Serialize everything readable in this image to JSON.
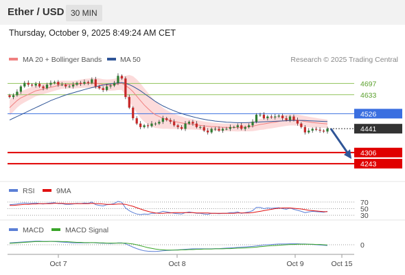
{
  "header": {
    "pair": "Ether / USD",
    "timeframe": "30 MIN",
    "datetime": "Thursday, October 9, 2025 8:49:24 AM CET"
  },
  "legend": {
    "bb": "MA 20 + Bollinger Bands",
    "bb_color": "#f08080",
    "ma50": "MA 50",
    "ma50_color": "#2f5597",
    "rsi": "RSI",
    "rsi_color": "#5b7fd6",
    "rsi_ma": "9MA",
    "rsi_ma_color": "#e01010",
    "macd": "MACD",
    "macd_color": "#5b7fd6",
    "macd_signal": "MACD Signal",
    "macd_signal_color": "#3aa52a"
  },
  "copyright": "Research © 2025 Trading Central",
  "chart_data": {
    "type": "candlestick",
    "y_range": [
      4150,
      4780
    ],
    "x_ticks": [
      "Oct 7",
      "Oct 8",
      "Oct 9",
      "Oct 15"
    ],
    "levels": [
      {
        "value": 4697,
        "label": "4697",
        "kind": "resistance",
        "color": "#8fc25a"
      },
      {
        "value": 4633,
        "label": "4633",
        "kind": "resistance",
        "color": "#8fc25a"
      },
      {
        "value": 4526,
        "label": "4526",
        "kind": "pivot",
        "color": "#3a6fe0"
      },
      {
        "value": 4441,
        "label": "4441",
        "kind": "last",
        "color": "#333333"
      },
      {
        "value": 4306,
        "label": "4306",
        "kind": "support",
        "color": "#e00000"
      },
      {
        "value": 4243,
        "label": "4243",
        "kind": "support",
        "color": "#e00000"
      }
    ],
    "forecast_arrow": {
      "from": 4441,
      "to": 4270,
      "color": "#2f5597"
    },
    "close_path": [
      4620,
      4630,
      4650,
      4680,
      4700,
      4690,
      4685,
      4695,
      4680,
      4670,
      4690,
      4700,
      4705,
      4690,
      4690,
      4680,
      4680,
      4690,
      4700,
      4695,
      4705,
      4700,
      4720,
      4680,
      4670,
      4660,
      4680,
      4685,
      4700,
      4740,
      4725,
      4620,
      4560,
      4500,
      4470,
      4450,
      4460,
      4455,
      4470,
      4470,
      4480,
      4500,
      4490,
      4480,
      4460,
      4450,
      4440,
      4470,
      4480,
      4470,
      4450,
      4450,
      4430,
      4420,
      4440,
      4440,
      4430,
      4440,
      4440,
      4450,
      4450,
      4460,
      4440,
      4450,
      4460,
      4480,
      4520,
      4520,
      4500,
      4510,
      4505,
      4510,
      4515,
      4500,
      4490,
      4510,
      4490,
      4470,
      4450,
      4420,
      4430,
      4440,
      4435,
      4430,
      4425,
      4441
    ],
    "ma20": [
      4560,
      4580,
      4600,
      4615,
      4625,
      4635,
      4645,
      4655,
      4660,
      4665,
      4670,
      4675,
      4680,
      4685,
      4690,
      4690,
      4690,
      4690,
      4692,
      4695,
      4697,
      4698,
      4700,
      4698,
      4695,
      4690,
      4688,
      4688,
      4690,
      4695,
      4698,
      4685,
      4670,
      4650,
      4625,
      4600,
      4575,
      4555,
      4535,
      4520,
      4510,
      4500,
      4493,
      4487,
      4482,
      4478,
      4474,
      4470,
      4468,
      4465,
      4462,
      4460,
      4457,
      4455,
      4453,
      4452,
      4450,
      4449,
      4448,
      4448,
      4448,
      4448,
      4449,
      4450,
      4452,
      4455,
      4460,
      4465,
      4468,
      4472,
      4475,
      4478,
      4482,
      4485,
      4488,
      4490,
      4490,
      4489,
      4486,
      4482,
      4479,
      4476,
      4474,
      4472,
      4470,
      4468
    ],
    "bb_width": [
      90,
      85,
      80,
      75,
      70,
      68,
      65,
      62,
      60,
      58,
      55,
      52,
      50,
      48,
      46,
      45,
      45,
      45,
      46,
      48,
      50,
      52,
      55,
      58,
      60,
      62,
      63,
      64,
      66,
      70,
      75,
      110,
      150,
      175,
      190,
      195,
      190,
      180,
      165,
      150,
      135,
      120,
      105,
      95,
      85,
      78,
      72,
      66,
      62,
      58,
      55,
      52,
      50,
      48,
      46,
      45,
      44,
      43,
      43,
      43,
      44,
      45,
      46,
      48,
      52,
      56,
      60,
      62,
      64,
      64,
      64,
      64,
      64,
      63,
      62,
      62,
      62,
      62,
      62,
      62,
      60,
      58,
      55,
      52,
      50,
      48
    ],
    "ma50": [
      4490,
      4500,
      4510,
      4520,
      4530,
      4540,
      4550,
      4560,
      4570,
      4580,
      4590,
      4600,
      4608,
      4616,
      4624,
      4632,
      4638,
      4644,
      4650,
      4656,
      4662,
      4668,
      4673,
      4678,
      4683,
      4688,
      4692,
      4695,
      4698,
      4700,
      4702,
      4698,
      4690,
      4680,
      4668,
      4655,
      4640,
      4625,
      4610,
      4595,
      4582,
      4570,
      4560,
      4550,
      4542,
      4534,
      4527,
      4520,
      4514,
      4508,
      4503,
      4498,
      4494,
      4490,
      4487,
      4484,
      4482,
      4480,
      4478,
      4477,
      4476,
      4475,
      4475,
      4475,
      4476,
      4477,
      4478,
      4479,
      4480,
      4481,
      4482,
      4483,
      4484,
      4485,
      4486,
      4487,
      4488,
      4488,
      4488,
      4487,
      4486,
      4485,
      4484,
      4483,
      4482,
      4481
    ],
    "rsi": {
      "levels": [
        70,
        50,
        30
      ],
      "range": [
        20,
        80
      ],
      "values": [
        62,
        63,
        64,
        66,
        67,
        66,
        66,
        67,
        65,
        64,
        66,
        67,
        68,
        65,
        65,
        63,
        63,
        64,
        66,
        65,
        67,
        66,
        70,
        62,
        60,
        58,
        62,
        63,
        66,
        72,
        69,
        52,
        44,
        38,
        34,
        32,
        34,
        33,
        36,
        36,
        38,
        42,
        40,
        38,
        36,
        35,
        34,
        38,
        40,
        38,
        36,
        36,
        34,
        33,
        36,
        36,
        35,
        36,
        36,
        38,
        38,
        40,
        36,
        38,
        40,
        44,
        54,
        54,
        50,
        52,
        51,
        52,
        53,
        50,
        48,
        52,
        48,
        45,
        42,
        38,
        40,
        42,
        41,
        40,
        39,
        42
      ],
      "ma": [
        60,
        60,
        61,
        62,
        63,
        63,
        64,
        64,
        65,
        65,
        65,
        65,
        66,
        66,
        66,
        65,
        65,
        65,
        65,
        65,
        65,
        65,
        66,
        65,
        65,
        64,
        63,
        63,
        63,
        64,
        64,
        63,
        60,
        57,
        53,
        49,
        45,
        42,
        39,
        37,
        36,
        36,
        37,
        37,
        38,
        38,
        38,
        38,
        38,
        38,
        37,
        37,
        37,
        37,
        36,
        36,
        36,
        36,
        36,
        36,
        36,
        37,
        37,
        37,
        37,
        38,
        40,
        42,
        44,
        46,
        48,
        50,
        51,
        52,
        52,
        52,
        51,
        50,
        49,
        47,
        45,
        44,
        43,
        42,
        41,
        41
      ]
    },
    "macd": {
      "zero": "0",
      "range": [
        -40,
        40
      ],
      "values": [
        8,
        9,
        10,
        11,
        12,
        13,
        14,
        15,
        15,
        14,
        14,
        14,
        13,
        12,
        11,
        10,
        9,
        8,
        8,
        8,
        8,
        8,
        9,
        8,
        7,
        6,
        6,
        5,
        6,
        8,
        8,
        4,
        -3,
        -10,
        -16,
        -21,
        -25,
        -27,
        -28,
        -28,
        -27,
        -25,
        -24,
        -23,
        -22,
        -21,
        -20,
        -19,
        -18,
        -17,
        -17,
        -17,
        -17,
        -17,
        -17,
        -16,
        -16,
        -15,
        -14,
        -13,
        -12,
        -11,
        -10,
        -9,
        -8,
        -7,
        -5,
        -3,
        -1,
        0,
        1,
        2,
        3,
        3,
        3,
        4,
        4,
        4,
        3,
        3,
        2,
        1,
        0,
        -1,
        -2,
        -3
      ],
      "signal": [
        6,
        7,
        8,
        9,
        10,
        11,
        12,
        13,
        13,
        13,
        13,
        14,
        14,
        14,
        13,
        13,
        12,
        11,
        10,
        10,
        9,
        9,
        9,
        9,
        8,
        8,
        7,
        7,
        7,
        7,
        7,
        7,
        5,
        3,
        0,
        -4,
        -8,
        -12,
        -15,
        -18,
        -20,
        -21,
        -22,
        -22,
        -22,
        -22,
        -21,
        -21,
        -20,
        -20,
        -19,
        -19,
        -18,
        -18,
        -18,
        -17,
        -17,
        -17,
        -16,
        -16,
        -15,
        -14,
        -14,
        -13,
        -12,
        -11,
        -10,
        -8,
        -7,
        -5,
        -4,
        -3,
        -2,
        -1,
        0,
        1,
        1,
        2,
        2,
        2,
        2,
        2,
        1,
        1,
        0,
        -1
      ]
    }
  }
}
